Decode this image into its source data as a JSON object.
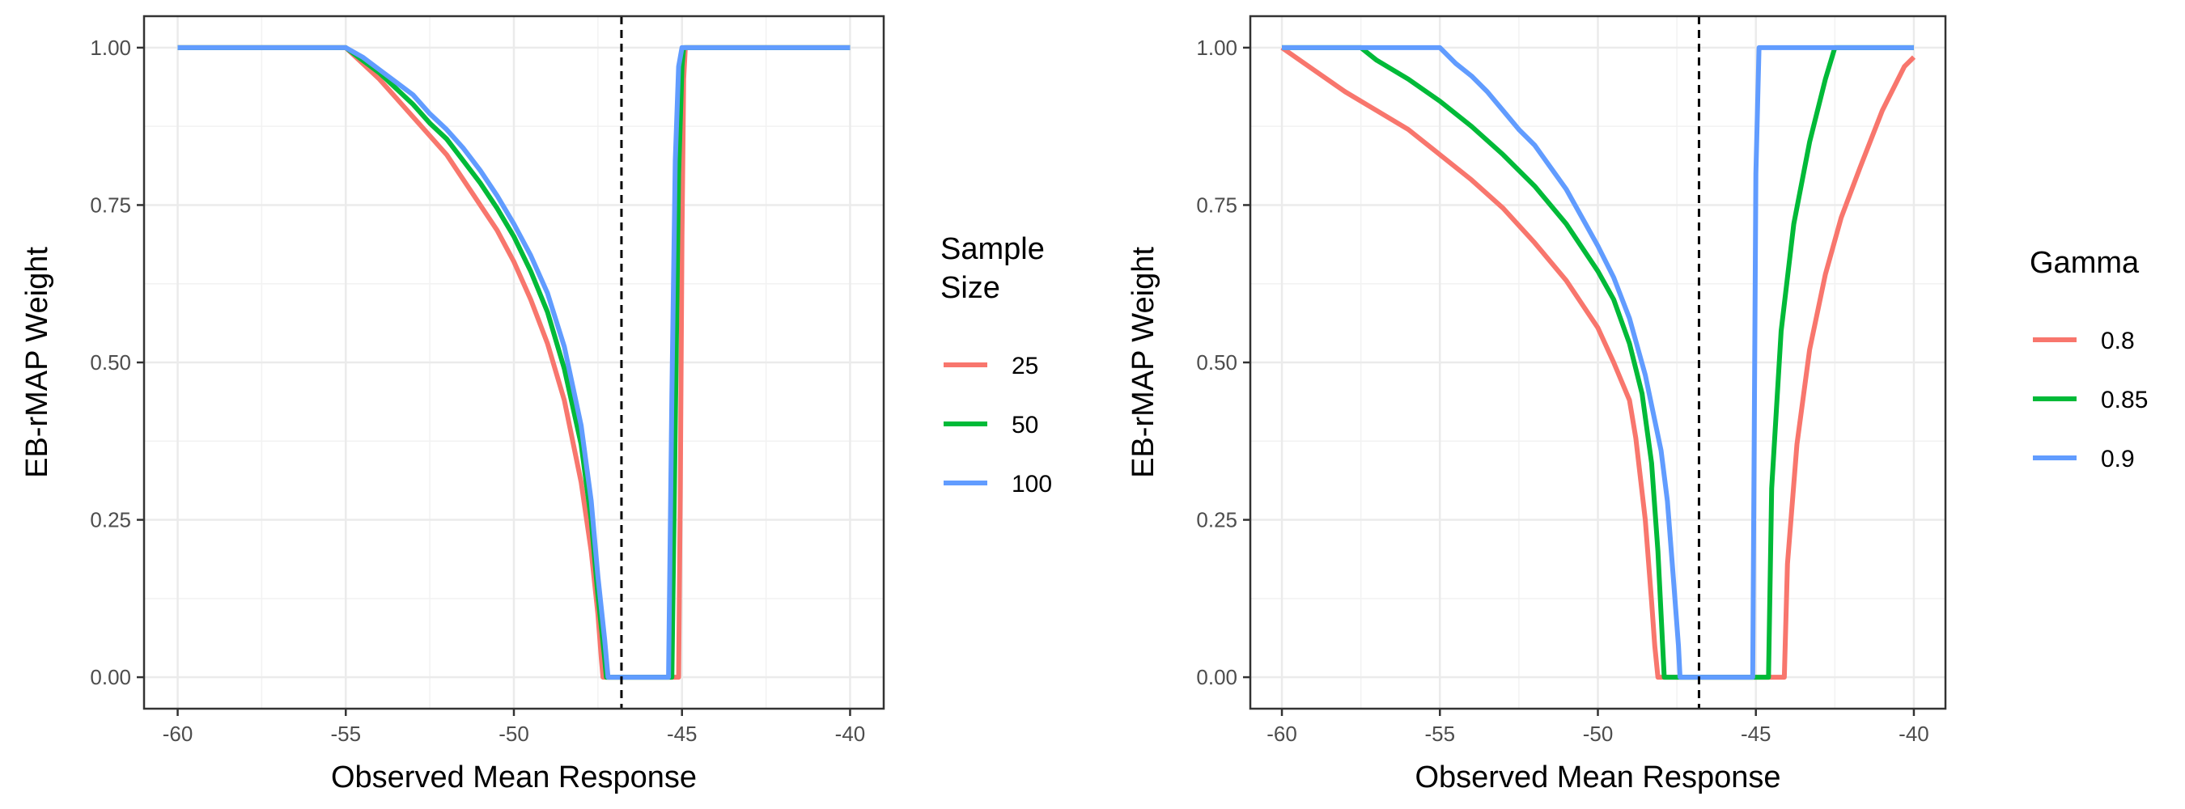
{
  "chart_data": [
    {
      "type": "line",
      "panel": "left",
      "title": "",
      "xlabel": "Observed Mean Response",
      "ylabel": "EB-rMAP Weight",
      "xlim": [
        -61,
        -39
      ],
      "ylim": [
        -0.05,
        1.05
      ],
      "xticks": [
        -60,
        -55,
        -50,
        -45,
        -40
      ],
      "xtick_labels": [
        "-60",
        "-55",
        "-50",
        "-45",
        "-40"
      ],
      "yticks": [
        0,
        0.25,
        0.5,
        0.75,
        1.0
      ],
      "ytick_labels": [
        "0.00",
        "0.25",
        "0.50",
        "0.75",
        "1.00"
      ],
      "grid": true,
      "vline": -46.8,
      "legend": {
        "title_lines": [
          "Sample",
          "Size"
        ],
        "position": "right"
      },
      "series": [
        {
          "name": "25",
          "color": "#F8766D",
          "points": [
            [
              -60,
              1
            ],
            [
              -55,
              1
            ],
            [
              -54.5,
              0.975
            ],
            [
              -54,
              0.95
            ],
            [
              -53.5,
              0.92
            ],
            [
              -53,
              0.89
            ],
            [
              -52.5,
              0.86
            ],
            [
              -52,
              0.83
            ],
            [
              -51.5,
              0.79
            ],
            [
              -51,
              0.75
            ],
            [
              -50.5,
              0.71
            ],
            [
              -50,
              0.66
            ],
            [
              -49.5,
              0.6
            ],
            [
              -49,
              0.53
            ],
            [
              -48.5,
              0.44
            ],
            [
              -48,
              0.31
            ],
            [
              -47.7,
              0.2
            ],
            [
              -47.5,
              0.1
            ],
            [
              -47.4,
              0.03
            ],
            [
              -47.35,
              0
            ],
            [
              -45.1,
              0
            ],
            [
              -45.05,
              0.3
            ],
            [
              -45,
              0.7
            ],
            [
              -44.95,
              0.95
            ],
            [
              -44.9,
              1
            ],
            [
              -40,
              1
            ]
          ]
        },
        {
          "name": "50",
          "color": "#00BA38",
          "points": [
            [
              -60,
              1
            ],
            [
              -55,
              1
            ],
            [
              -54.5,
              0.98
            ],
            [
              -54,
              0.96
            ],
            [
              -53.5,
              0.935
            ],
            [
              -53,
              0.91
            ],
            [
              -52.5,
              0.88
            ],
            [
              -52,
              0.855
            ],
            [
              -51.5,
              0.82
            ],
            [
              -51,
              0.785
            ],
            [
              -50.5,
              0.745
            ],
            [
              -50,
              0.7
            ],
            [
              -49.5,
              0.645
            ],
            [
              -49,
              0.58
            ],
            [
              -48.5,
              0.49
            ],
            [
              -48,
              0.37
            ],
            [
              -47.7,
              0.25
            ],
            [
              -47.5,
              0.13
            ],
            [
              -47.3,
              0.03
            ],
            [
              -47.25,
              0
            ],
            [
              -45.3,
              0
            ],
            [
              -45.2,
              0.4
            ],
            [
              -45.1,
              0.8
            ],
            [
              -45.0,
              0.97
            ],
            [
              -44.95,
              1
            ],
            [
              -40,
              1
            ]
          ]
        },
        {
          "name": "100",
          "color": "#619CFF",
          "points": [
            [
              -60,
              1
            ],
            [
              -55,
              1
            ],
            [
              -54.5,
              0.985
            ],
            [
              -54,
              0.965
            ],
            [
              -53.5,
              0.945
            ],
            [
              -53,
              0.925
            ],
            [
              -52.5,
              0.895
            ],
            [
              -52,
              0.87
            ],
            [
              -51.5,
              0.84
            ],
            [
              -51,
              0.805
            ],
            [
              -50.5,
              0.765
            ],
            [
              -50,
              0.72
            ],
            [
              -49.5,
              0.67
            ],
            [
              -49,
              0.61
            ],
            [
              -48.5,
              0.525
            ],
            [
              -48,
              0.4
            ],
            [
              -47.7,
              0.28
            ],
            [
              -47.5,
              0.16
            ],
            [
              -47.3,
              0.06
            ],
            [
              -47.2,
              0
            ],
            [
              -45.4,
              0
            ],
            [
              -45.3,
              0.45
            ],
            [
              -45.2,
              0.82
            ],
            [
              -45.1,
              0.97
            ],
            [
              -45.0,
              1
            ],
            [
              -40,
              1
            ]
          ]
        }
      ]
    },
    {
      "type": "line",
      "panel": "right",
      "title": "",
      "xlabel": "Observed Mean Response",
      "ylabel": "EB-rMAP Weight",
      "xlim": [
        -61,
        -39
      ],
      "ylim": [
        -0.05,
        1.05
      ],
      "xticks": [
        -60,
        -55,
        -50,
        -45,
        -40
      ],
      "xtick_labels": [
        "-60",
        "-55",
        "-50",
        "-45",
        "-40"
      ],
      "yticks": [
        0,
        0.25,
        0.5,
        0.75,
        1.0
      ],
      "ytick_labels": [
        "0.00",
        "0.25",
        "0.50",
        "0.75",
        "1.00"
      ],
      "grid": true,
      "vline": -46.8,
      "legend": {
        "title_lines": [
          "Gamma"
        ],
        "position": "right"
      },
      "series": [
        {
          "name": "0.8",
          "color": "#F8766D",
          "points": [
            [
              -60,
              1
            ],
            [
              -59,
              0.965
            ],
            [
              -58,
              0.93
            ],
            [
              -57,
              0.9
            ],
            [
              -56,
              0.87
            ],
            [
              -55,
              0.83
            ],
            [
              -54,
              0.79
            ],
            [
              -53,
              0.745
            ],
            [
              -52,
              0.69
            ],
            [
              -51,
              0.63
            ],
            [
              -50,
              0.555
            ],
            [
              -49.5,
              0.5
            ],
            [
              -49,
              0.44
            ],
            [
              -48.8,
              0.38
            ],
            [
              -48.5,
              0.25
            ],
            [
              -48.3,
              0.12
            ],
            [
              -48.2,
              0.05
            ],
            [
              -48.1,
              0
            ],
            [
              -44.1,
              0
            ],
            [
              -44.0,
              0.18
            ],
            [
              -43.7,
              0.37
            ],
            [
              -43.3,
              0.52
            ],
            [
              -42.8,
              0.64
            ],
            [
              -42.3,
              0.73
            ],
            [
              -41.7,
              0.81
            ],
            [
              -41,
              0.9
            ],
            [
              -40.3,
              0.97
            ],
            [
              -40,
              0.985
            ]
          ]
        },
        {
          "name": "0.85",
          "color": "#00BA38",
          "points": [
            [
              -60,
              1
            ],
            [
              -57.5,
              1
            ],
            [
              -57,
              0.98
            ],
            [
              -56,
              0.95
            ],
            [
              -55,
              0.915
            ],
            [
              -54,
              0.875
            ],
            [
              -53,
              0.83
            ],
            [
              -52,
              0.78
            ],
            [
              -51,
              0.72
            ],
            [
              -50,
              0.645
            ],
            [
              -49.5,
              0.6
            ],
            [
              -49,
              0.53
            ],
            [
              -48.6,
              0.45
            ],
            [
              -48.3,
              0.34
            ],
            [
              -48.1,
              0.2
            ],
            [
              -48.0,
              0.1
            ],
            [
              -47.9,
              0
            ],
            [
              -44.6,
              0
            ],
            [
              -44.5,
              0.3
            ],
            [
              -44.2,
              0.55
            ],
            [
              -43.8,
              0.72
            ],
            [
              -43.3,
              0.85
            ],
            [
              -42.8,
              0.95
            ],
            [
              -42.5,
              1
            ],
            [
              -40,
              1
            ]
          ]
        },
        {
          "name": "0.9",
          "color": "#619CFF",
          "points": [
            [
              -60,
              1
            ],
            [
              -55,
              1
            ],
            [
              -54.5,
              0.975
            ],
            [
              -54,
              0.955
            ],
            [
              -53.5,
              0.93
            ],
            [
              -53,
              0.9
            ],
            [
              -52.5,
              0.87
            ],
            [
              -52,
              0.845
            ],
            [
              -51.5,
              0.81
            ],
            [
              -51,
              0.775
            ],
            [
              -50.5,
              0.73
            ],
            [
              -50,
              0.685
            ],
            [
              -49.5,
              0.635
            ],
            [
              -49,
              0.57
            ],
            [
              -48.5,
              0.48
            ],
            [
              -48,
              0.36
            ],
            [
              -47.8,
              0.28
            ],
            [
              -47.6,
              0.15
            ],
            [
              -47.45,
              0.05
            ],
            [
              -47.4,
              0
            ],
            [
              -45.1,
              0
            ],
            [
              -45.05,
              0.4
            ],
            [
              -45.0,
              0.8
            ],
            [
              -44.9,
              1
            ],
            [
              -40,
              1
            ]
          ]
        }
      ]
    }
  ]
}
